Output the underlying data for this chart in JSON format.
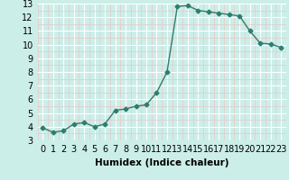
{
  "x": [
    0,
    1,
    2,
    3,
    4,
    5,
    6,
    7,
    8,
    9,
    10,
    11,
    12,
    13,
    14,
    15,
    16,
    17,
    18,
    19,
    20,
    21,
    22,
    23
  ],
  "y": [
    3.9,
    3.6,
    3.7,
    4.2,
    4.3,
    4.0,
    4.2,
    5.2,
    5.3,
    5.5,
    5.6,
    6.5,
    8.0,
    12.8,
    12.85,
    12.5,
    12.4,
    12.3,
    12.2,
    12.1,
    11.0,
    10.1,
    10.05,
    9.8
  ],
  "line_color": "#2e7d6e",
  "marker": "D",
  "marker_size": 2.5,
  "line_width": 1.0,
  "bg_color": "#cceee8",
  "grid_color_major": "#b0d8d0",
  "grid_color_minor": "#e8c8c8",
  "xlabel": "Humidex (Indice chaleur)",
  "xlabel_fontsize": 7.5,
  "tick_fontsize": 7,
  "xlim": [
    -0.5,
    23.5
  ],
  "ylim": [
    3,
    13
  ],
  "yticks": [
    3,
    4,
    5,
    6,
    7,
    8,
    9,
    10,
    11,
    12,
    13
  ],
  "xtick_labels": [
    "0",
    "1",
    "2",
    "3",
    "4",
    "5",
    "6",
    "7",
    "8",
    "9",
    "10",
    "11",
    "12",
    "13",
    "14",
    "15",
    "16",
    "17",
    "18",
    "19",
    "20",
    "21",
    "22",
    "23"
  ]
}
